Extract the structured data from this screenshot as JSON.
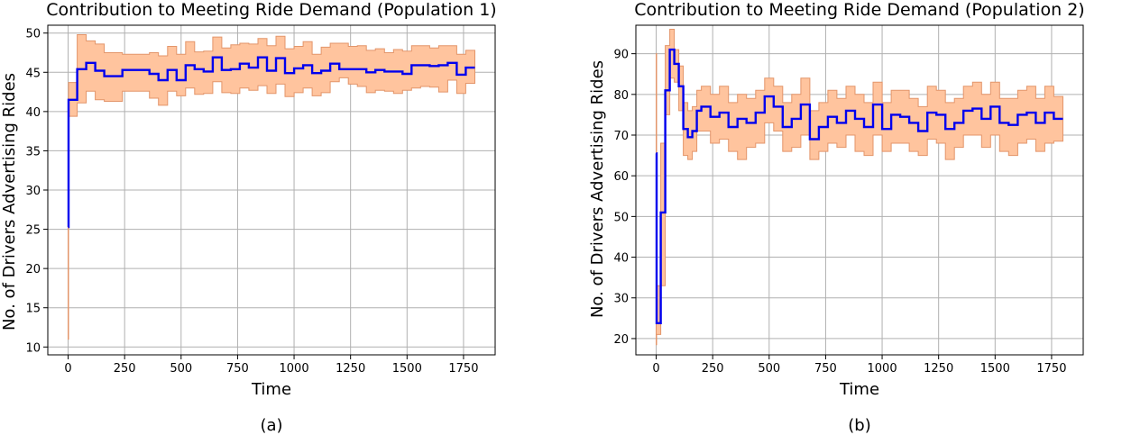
{
  "colors": {
    "line": "#0000ee",
    "band_fill": "#ffc49e",
    "band_edge": "#e3956a",
    "grid": "#b0b0b0"
  },
  "chart_data": [
    {
      "type": "line",
      "title": "Contribution to Meeting Ride Demand (Population 1)",
      "xlabel": "Time",
      "ylabel": "No. of Drivers Advertising Rides",
      "caption": "(a)",
      "xlim": [
        -90,
        1890
      ],
      "ylim": [
        9,
        51
      ],
      "xticks": [
        0,
        250,
        500,
        750,
        1000,
        1250,
        1500,
        1750
      ],
      "yticks": [
        10,
        15,
        20,
        25,
        30,
        35,
        40,
        45,
        50
      ],
      "grid": true,
      "series": [
        {
          "style": "step-post",
          "x": [
            0,
            2,
            40,
            80,
            120,
            160,
            240,
            360,
            400,
            440,
            480,
            520,
            560,
            600,
            640,
            680,
            720,
            760,
            800,
            840,
            880,
            920,
            960,
            1000,
            1040,
            1080,
            1120,
            1160,
            1200,
            1240,
            1280,
            1320,
            1360,
            1400,
            1440,
            1480,
            1520,
            1560,
            1600,
            1640,
            1680,
            1720,
            1760,
            1800
          ],
          "y": [
            25.3,
            41.5,
            45.4,
            46.2,
            45.2,
            44.5,
            45.3,
            44.8,
            44.0,
            45.3,
            44.0,
            45.9,
            45.4,
            45.1,
            46.9,
            45.3,
            45.4,
            46.1,
            45.6,
            46.9,
            45.2,
            46.8,
            44.9,
            45.5,
            45.9,
            44.9,
            45.2,
            46.1,
            45.4,
            45.4,
            45.4,
            45.0,
            45.3,
            45.1,
            45.1,
            44.8,
            45.9,
            45.9,
            45.8,
            45.9,
            46.2,
            44.7,
            45.6,
            45.6
          ],
          "lower": [
            11.0,
            39.4,
            41.1,
            42.6,
            41.5,
            41.3,
            42.6,
            41.7,
            40.8,
            42.6,
            42.0,
            43.0,
            42.2,
            42.3,
            43.8,
            42.4,
            42.3,
            43.0,
            42.7,
            43.3,
            42.3,
            43.5,
            41.9,
            42.4,
            43.0,
            42.0,
            42.4,
            43.8,
            44.3,
            43.5,
            43.2,
            42.4,
            42.7,
            42.6,
            42.3,
            42.7,
            43.0,
            43.2,
            43.1,
            42.5,
            44.0,
            42.3,
            43.6,
            43.6
          ],
          "upper": [
            25.5,
            43.7,
            49.8,
            49.0,
            48.6,
            47.5,
            47.3,
            47.5,
            47.1,
            48.3,
            47.3,
            48.9,
            47.6,
            47.7,
            49.5,
            48.1,
            48.5,
            48.7,
            48.6,
            49.3,
            48.4,
            49.6,
            48.0,
            48.3,
            48.9,
            47.3,
            48.2,
            48.7,
            48.7,
            48.3,
            48.4,
            47.8,
            48.0,
            47.5,
            47.9,
            47.7,
            48.4,
            48.4,
            48.1,
            48.4,
            48.4,
            47.3,
            47.8,
            47.8
          ]
        }
      ]
    },
    {
      "type": "line",
      "title": "Contribution to Meeting Ride Demand (Population 2)",
      "xlabel": "Time",
      "ylabel": "No. of Drivers Advertising Rides",
      "caption": "(b)",
      "xlim": [
        -90,
        1890
      ],
      "ylim": [
        16,
        97
      ],
      "xticks": [
        0,
        250,
        500,
        750,
        1000,
        1250,
        1500,
        1750
      ],
      "yticks": [
        20,
        30,
        40,
        50,
        60,
        70,
        80,
        90
      ],
      "grid": true,
      "series": [
        {
          "style": "step-post",
          "x": [
            0,
            2,
            20,
            40,
            60,
            80,
            100,
            120,
            140,
            160,
            180,
            200,
            240,
            280,
            320,
            360,
            400,
            440,
            480,
            520,
            560,
            600,
            640,
            680,
            720,
            760,
            800,
            840,
            880,
            920,
            960,
            1000,
            1040,
            1080,
            1120,
            1160,
            1200,
            1240,
            1280,
            1320,
            1360,
            1400,
            1440,
            1480,
            1520,
            1560,
            1600,
            1640,
            1680,
            1720,
            1760,
            1800
          ],
          "y": [
            65.5,
            23.8,
            51.0,
            81.0,
            91.0,
            87.5,
            82.0,
            71.5,
            69.5,
            71.0,
            76.0,
            77.0,
            74.5,
            75.5,
            72.0,
            74.0,
            73.0,
            75.5,
            79.5,
            77.0,
            72.0,
            74.0,
            77.5,
            69.0,
            72.0,
            74.5,
            73.0,
            76.0,
            74.0,
            72.0,
            77.5,
            71.5,
            75.0,
            74.5,
            73.0,
            71.0,
            75.5,
            75.0,
            71.5,
            73.0,
            76.0,
            76.5,
            74.0,
            77.0,
            73.0,
            72.5,
            75.0,
            75.5,
            73.0,
            75.5,
            74.0,
            74.0
          ],
          "lower": [
            18.5,
            21.0,
            33.0,
            75.0,
            84.0,
            83.0,
            76.0,
            65.0,
            64.0,
            66.0,
            71.0,
            71.0,
            68.0,
            69.0,
            66.0,
            64.0,
            67.0,
            68.0,
            73.0,
            71.0,
            66.0,
            67.0,
            70.0,
            64.0,
            66.0,
            68.0,
            67.0,
            70.0,
            66.0,
            65.0,
            70.0,
            66.0,
            68.0,
            68.0,
            66.0,
            65.0,
            69.0,
            68.0,
            64.0,
            67.0,
            70.0,
            70.0,
            67.0,
            70.0,
            66.0,
            65.0,
            68.0,
            69.0,
            66.0,
            68.0,
            68.5,
            68.5
          ],
          "upper": [
            90.0,
            33.0,
            68.0,
            92.0,
            96.0,
            91.0,
            87.0,
            78.0,
            76.0,
            77.0,
            81.0,
            82.0,
            80.0,
            82.0,
            78.0,
            80.0,
            79.0,
            81.0,
            84.0,
            82.0,
            78.0,
            80.0,
            84.0,
            76.0,
            78.0,
            81.0,
            79.0,
            82.0,
            80.0,
            78.0,
            83.0,
            78.0,
            81.0,
            81.0,
            79.0,
            77.0,
            82.0,
            81.0,
            78.0,
            79.0,
            82.0,
            83.0,
            80.0,
            83.0,
            79.0,
            79.0,
            81.0,
            82.0,
            79.0,
            82.0,
            79.5,
            79.5
          ]
        }
      ]
    }
  ]
}
